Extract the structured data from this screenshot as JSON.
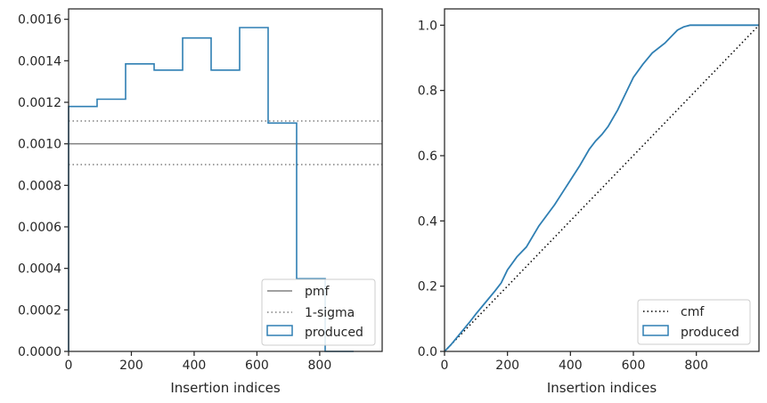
{
  "chart_data": [
    {
      "type": "histogram",
      "xlabel": "Insertion indices",
      "ylabel": "",
      "xlim": [
        0,
        999
      ],
      "ylim": [
        0,
        0.00165
      ],
      "xticks": [
        0,
        200,
        400,
        600,
        800
      ],
      "xtick_labels": [
        "0",
        "200",
        "400",
        "600",
        "800"
      ],
      "yticks": [
        0,
        0.0002,
        0.0004,
        0.0006,
        0.0008,
        0.001,
        0.0012,
        0.0014,
        0.0016
      ],
      "ytick_labels": [
        "0.0000",
        "0.0002",
        "0.0004",
        "0.0006",
        "0.0008",
        "0.0010",
        "0.0012",
        "0.0014",
        "0.0016"
      ],
      "grid": false,
      "legend_position": "lower-right",
      "legend": [
        "pmf",
        "1-sigma",
        "produced"
      ],
      "reference_lines": [
        {
          "name": "pmf",
          "y": 0.001,
          "style": "solid",
          "color": "#808080"
        },
        {
          "name": "1-sigma",
          "y": 0.00111,
          "style": "dotted",
          "color": "#808080"
        },
        {
          "name": "1-sigma",
          "y": 0.0009,
          "style": "dotted",
          "color": "#808080"
        }
      ],
      "series": [
        {
          "name": "produced",
          "color": "#2f7fb3",
          "bin_edges": [
            0,
            90.8,
            181.6,
            272.5,
            363.3,
            454.1,
            544.9,
            635.7,
            726.5,
            817.4,
            908.2
          ],
          "values": [
            0.00118,
            0.001215,
            0.001385,
            0.001355,
            0.00151,
            0.001355,
            0.00156,
            0.0011,
            0.00035,
            0.0
          ]
        }
      ]
    },
    {
      "type": "line",
      "xlabel": "Insertion indices",
      "ylabel": "",
      "xlim": [
        0,
        999
      ],
      "ylim": [
        0,
        1.05
      ],
      "xticks": [
        0,
        200,
        400,
        600,
        800
      ],
      "xtick_labels": [
        "0",
        "200",
        "400",
        "600",
        "800"
      ],
      "yticks": [
        0,
        0.2,
        0.4,
        0.6,
        0.8,
        1.0
      ],
      "ytick_labels": [
        "0.0",
        "0.2",
        "0.4",
        "0.6",
        "0.8",
        "1.0"
      ],
      "grid": false,
      "legend_position": "lower-right",
      "legend": [
        "cmf",
        "produced"
      ],
      "series": [
        {
          "name": "cmf",
          "style": "dotted",
          "color": "#000000",
          "x": [
            0,
            999
          ],
          "y": [
            0,
            1.0
          ]
        },
        {
          "name": "produced",
          "style": "step",
          "color": "#2f7fb3",
          "x": [
            0,
            20,
            50,
            80,
            100,
            130,
            160,
            180,
            200,
            230,
            260,
            300,
            350,
            400,
            430,
            460,
            480,
            500,
            520,
            550,
            580,
            600,
            630,
            660,
            700,
            720,
            740,
            760,
            780,
            800,
            999
          ],
          "y": [
            0,
            0.02,
            0.055,
            0.09,
            0.115,
            0.15,
            0.185,
            0.21,
            0.25,
            0.29,
            0.32,
            0.385,
            0.45,
            0.525,
            0.57,
            0.62,
            0.645,
            0.665,
            0.69,
            0.74,
            0.8,
            0.84,
            0.88,
            0.915,
            0.945,
            0.965,
            0.985,
            0.995,
            1.0,
            1.0,
            1.0
          ]
        }
      ]
    }
  ]
}
